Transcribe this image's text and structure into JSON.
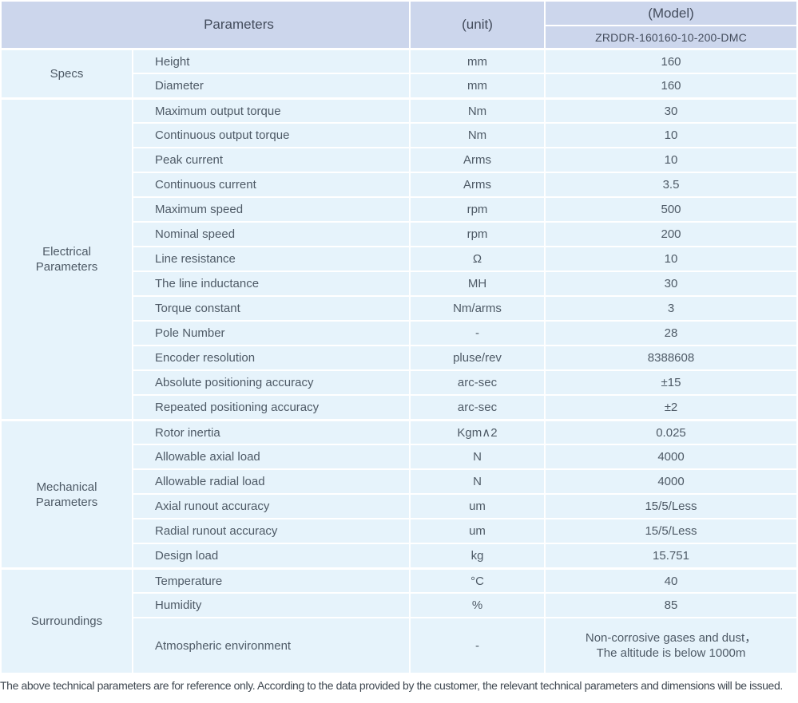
{
  "header": {
    "parameters_label": "Parameters",
    "unit_label": "(unit)",
    "model_label": "(Model)",
    "model_value": "ZRDDR-160160-10-200-DMC"
  },
  "sections": [
    {
      "name": "Specs",
      "rows": [
        {
          "param": "Height",
          "unit": "mm",
          "value": "160"
        },
        {
          "param": "Diameter",
          "unit": "mm",
          "value": "160"
        }
      ]
    },
    {
      "name": "Electrical Parameters",
      "rows": [
        {
          "param": "Maximum output torque",
          "unit": "Nm",
          "value": "30"
        },
        {
          "param": "Continuous output torque",
          "unit": "Nm",
          "value": "10"
        },
        {
          "param": "Peak current",
          "unit": "Arms",
          "value": "10"
        },
        {
          "param": "Continuous current",
          "unit": "Arms",
          "value": "3.5"
        },
        {
          "param": "Maximum speed",
          "unit": "rpm",
          "value": "500"
        },
        {
          "param": "Nominal speed",
          "unit": "rpm",
          "value": "200"
        },
        {
          "param": "Line resistance",
          "unit": "Ω",
          "value": "10"
        },
        {
          "param": "The line inductance",
          "unit": "MH",
          "value": "30"
        },
        {
          "param": "Torque constant",
          "unit": "Nm/arms",
          "value": "3"
        },
        {
          "param": "Pole Number",
          "unit": "-",
          "value": "28"
        },
        {
          "param": "Encoder resolution",
          "unit": "pluse/rev",
          "value": "8388608"
        },
        {
          "param": "Absolute positioning accuracy",
          "unit": "arc-sec",
          "value": "±15"
        },
        {
          "param": "Repeated positioning accuracy",
          "unit": "arc-sec",
          "value": "±2"
        }
      ]
    },
    {
      "name": "Mechanical Parameters",
      "rows": [
        {
          "param": "Rotor inertia",
          "unit": "Kgm∧2",
          "value": "0.025"
        },
        {
          "param": "Allowable axial load",
          "unit": "N",
          "value": "4000"
        },
        {
          "param": "Allowable radial load",
          "unit": "N",
          "value": "4000"
        },
        {
          "param": "Axial runout accuracy",
          "unit": "um",
          "value": "15/5/Less"
        },
        {
          "param": "Radial runout accuracy",
          "unit": "um",
          "value": "15/5/Less"
        },
        {
          "param": "Design load",
          "unit": "kg",
          "value": "15.751"
        }
      ]
    },
    {
      "name": "Surroundings",
      "rows": [
        {
          "param": "Temperature",
          "unit": "°C",
          "value": "40"
        },
        {
          "param": "Humidity",
          "unit": "%",
          "value": "85"
        },
        {
          "param": "Atmospheric environment",
          "unit": "-",
          "tall": true,
          "value": [
            "Non-corrosive gases and dust，",
            "The altitude is below 1000m"
          ]
        }
      ]
    }
  ],
  "footnote": "The above technical parameters are for reference only. According to the data provided by the customer, the relevant technical parameters and dimensions will be issued.",
  "colors": {
    "header_bg": "#ccd6ec",
    "row_bg": "#e6f3fb",
    "page_bg": "#ffffff"
  }
}
